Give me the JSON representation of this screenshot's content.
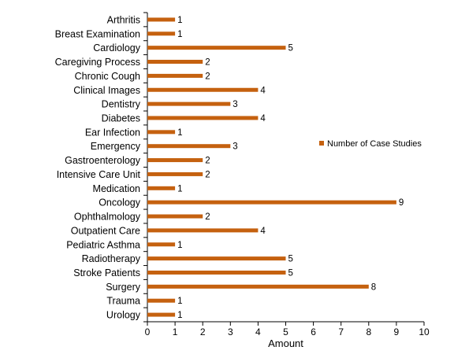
{
  "chart_data": {
    "type": "bar",
    "orientation": "horizontal",
    "categories": [
      "Arthritis",
      "Breast Examination",
      "Cardiology",
      "Caregiving Process",
      "Chronic Cough",
      "Clinical Images",
      "Dentistry",
      "Diabetes",
      "Ear Infection",
      "Emergency",
      "Gastroenterology",
      "Intensive Care Unit",
      "Medication",
      "Oncology",
      "Ophthalmology",
      "Outpatient Care",
      "Pediatric Asthma",
      "Radiotherapy",
      "Stroke Patients",
      "Surgery",
      "Trauma",
      "Urology"
    ],
    "series": [
      {
        "name": "Number of Case Studies",
        "values": [
          1,
          1,
          5,
          2,
          2,
          4,
          3,
          4,
          1,
          3,
          2,
          2,
          1,
          9,
          2,
          4,
          1,
          5,
          5,
          8,
          1,
          1
        ]
      }
    ],
    "xlabel": "Amount",
    "ylabel": "",
    "title": "",
    "xlim": [
      0,
      10
    ],
    "x_ticks": [
      0,
      1,
      2,
      3,
      4,
      5,
      6,
      7,
      8,
      9,
      10
    ],
    "grid": false,
    "legend_position": "right",
    "data_labels": true,
    "colors": {
      "bar": "#C5610F",
      "axis": "#000000"
    }
  }
}
